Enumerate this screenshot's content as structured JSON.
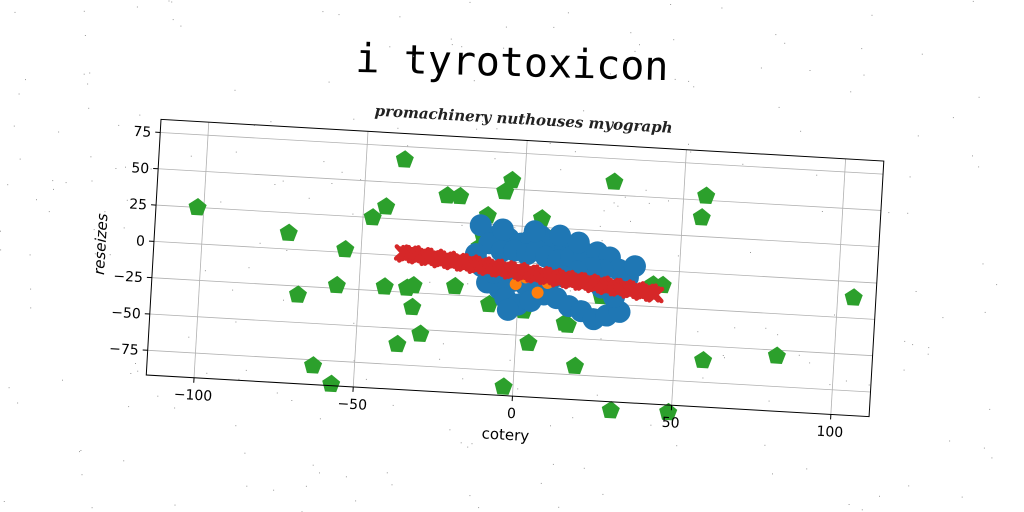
{
  "page_title": "i tyrotoxicon",
  "chart_data": {
    "type": "scatter",
    "title": "promachinery nuthouses myograph",
    "xlabel": "cotery",
    "ylabel": "reseizes",
    "xlim": [
      -115,
      112
    ],
    "ylim": [
      -92,
      84
    ],
    "xticks": [
      -100,
      -50,
      0,
      50,
      100
    ],
    "yticks": [
      -75,
      -50,
      -25,
      0,
      25,
      50,
      75
    ],
    "grid": true,
    "legend": "none",
    "series": [
      {
        "marker": "pentagon",
        "color": "#2ca02c",
        "points": [
          [
            -102,
            25
          ],
          [
            -73,
            11
          ],
          [
            -69,
            -31
          ],
          [
            -63,
            -79
          ],
          [
            -57,
            -91
          ],
          [
            -57,
            -23
          ],
          [
            -55,
            2
          ],
          [
            -47,
            25
          ],
          [
            -43,
            33
          ],
          [
            -42,
            -22
          ],
          [
            -38,
            66
          ],
          [
            -37,
            -61
          ],
          [
            -33,
            -20
          ],
          [
            -33,
            -35
          ],
          [
            -30,
            -53
          ],
          [
            -24,
            43
          ],
          [
            -20,
            43
          ],
          [
            -20,
            -19
          ],
          [
            -11,
            31
          ],
          [
            -12,
            16
          ],
          [
            -6,
            48
          ],
          [
            -6,
            -22
          ],
          [
            -4,
            56
          ],
          [
            -3,
            -86
          ],
          [
            2,
            -33
          ],
          [
            4,
            -55
          ],
          [
            6,
            31
          ],
          [
            7,
            20
          ],
          [
            15,
            -40
          ],
          [
            16,
            -41
          ],
          [
            19,
            -69
          ],
          [
            26,
            -20
          ],
          [
            28,
            59
          ],
          [
            31,
            -98
          ],
          [
            45,
            -10
          ],
          [
            49,
            -97
          ],
          [
            56,
            38
          ],
          [
            57,
            53
          ],
          [
            59,
            -60
          ],
          [
            82,
            -54
          ],
          [
            105,
            -11
          ],
          [
            42,
            -10
          ],
          [
            -13,
            9
          ],
          [
            -35,
            -22
          ],
          [
            -9,
            -30
          ]
        ]
      },
      {
        "marker": "circle",
        "color": "#1f77b4",
        "points": [
          [
            -13,
            24
          ],
          [
            -8,
            17
          ],
          [
            -4,
            16
          ],
          [
            0,
            13
          ],
          [
            3,
            16
          ],
          [
            6,
            19
          ],
          [
            10,
            16
          ],
          [
            14,
            12
          ],
          [
            -10,
            12
          ],
          [
            -6,
            7
          ],
          [
            -2,
            8
          ],
          [
            2,
            6
          ],
          [
            5,
            9
          ],
          [
            8,
            5
          ],
          [
            12,
            3
          ],
          [
            16,
            6
          ],
          [
            20,
            9
          ],
          [
            24,
            10
          ],
          [
            28,
            7
          ],
          [
            31,
            -1
          ],
          [
            34,
            -6
          ],
          [
            26,
            -2
          ],
          [
            22,
            -1
          ],
          [
            18,
            -4
          ],
          [
            14,
            -8
          ],
          [
            10,
            -10
          ],
          [
            6,
            -13
          ],
          [
            2,
            -15
          ],
          [
            -2,
            -13
          ],
          [
            -6,
            -19
          ],
          [
            -10,
            -15
          ],
          [
            -4,
            -25
          ],
          [
            0,
            -29
          ],
          [
            -3,
            -33
          ],
          [
            4,
            -26
          ],
          [
            8,
            -21
          ],
          [
            12,
            -23
          ],
          [
            16,
            -28
          ],
          [
            20,
            -31
          ],
          [
            24,
            -36
          ],
          [
            28,
            -33
          ],
          [
            32,
            -30
          ],
          [
            30,
            -20
          ],
          [
            26,
            -14
          ],
          [
            -8,
            -8
          ],
          [
            -12,
            -4
          ],
          [
            -14,
            4
          ],
          [
            36,
            2
          ],
          [
            18,
            16
          ],
          [
            12,
            20
          ],
          [
            4,
            22
          ],
          [
            -6,
            22
          ]
        ]
      },
      {
        "marker": "circle",
        "color": "#ff7f0e",
        "points": [
          [
            2,
            -10
          ],
          [
            6,
            -20
          ],
          [
            -1,
            -15
          ],
          [
            9,
            -13
          ]
        ]
      },
      {
        "marker": "x",
        "color": "#d62728",
        "line": {
          "x_start": -37,
          "y_start": 2,
          "x_end": 43,
          "y_end": -16,
          "count": 80
        }
      }
    ]
  }
}
